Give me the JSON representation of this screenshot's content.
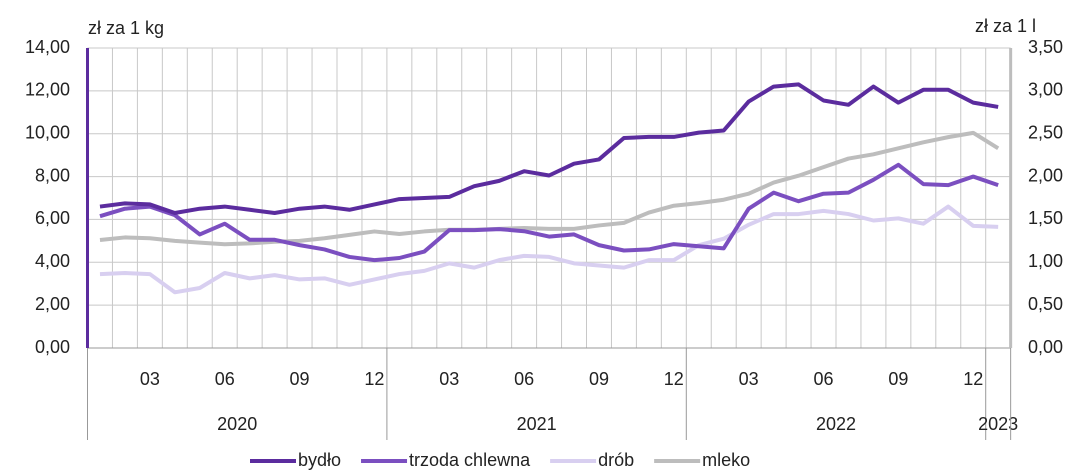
{
  "chart_data": {
    "type": "line",
    "y_label": "zł za 1 kg",
    "y2_label": "zł za 1 l",
    "categories": [
      null,
      null,
      "03",
      null,
      null,
      "06",
      null,
      null,
      "09",
      null,
      null,
      "12",
      null,
      null,
      "03",
      null,
      null,
      "06",
      null,
      null,
      "09",
      null,
      null,
      "12",
      null,
      null,
      "03",
      null,
      null,
      "06",
      null,
      null,
      "09",
      null,
      null,
      "12",
      null
    ],
    "x_groups": [
      "2020",
      "2021",
      "2022",
      "2023"
    ],
    "ylim": [
      0,
      14
    ],
    "yticks": [
      {
        "value": 0,
        "label": "0,00"
      },
      {
        "value": 2,
        "label": "2,00"
      },
      {
        "value": 4,
        "label": "4,00"
      },
      {
        "value": 6,
        "label": "6,00"
      },
      {
        "value": 8,
        "label": "8,00"
      },
      {
        "value": 10,
        "label": "10,00"
      },
      {
        "value": 12,
        "label": "12,00"
      },
      {
        "value": 14,
        "label": "14,00"
      }
    ],
    "y2lim": [
      0,
      3.5
    ],
    "y2ticks": [
      {
        "value": 0,
        "label": "0,00"
      },
      {
        "value": 0.5,
        "label": "0,50"
      },
      {
        "value": 1,
        "label": "1,00"
      },
      {
        "value": 1.5,
        "label": "1,50"
      },
      {
        "value": 2,
        "label": "2,00"
      },
      {
        "value": 2.5,
        "label": "2,50"
      },
      {
        "value": 3,
        "label": "3,00"
      },
      {
        "value": 3.5,
        "label": "3,50"
      }
    ],
    "grid": true,
    "legend": "bottom",
    "series": [
      {
        "name": "bydło",
        "color": "#5b2c9e",
        "values": [
          6.6,
          6.75,
          6.7,
          6.3,
          6.5,
          6.6,
          6.45,
          6.3,
          6.5,
          6.6,
          6.45,
          6.7,
          6.95,
          7.0,
          7.05,
          7.55,
          7.8,
          8.25,
          8.05,
          8.6,
          8.8,
          9.8,
          9.85,
          9.85,
          10.05,
          10.15,
          11.5,
          12.2,
          12.3,
          11.55,
          11.35,
          12.2,
          11.45,
          12.05,
          12.05,
          11.45,
          11.25
        ]
      },
      {
        "name": "trzoda chlewna",
        "color": "#7b4fc0",
        "values": [
          6.15,
          6.5,
          6.6,
          6.2,
          5.3,
          5.8,
          5.05,
          5.05,
          4.8,
          4.6,
          4.25,
          4.1,
          4.2,
          4.5,
          5.5,
          5.5,
          5.55,
          5.45,
          5.2,
          5.3,
          4.8,
          4.55,
          4.6,
          4.85,
          4.75,
          4.65,
          6.5,
          7.25,
          6.85,
          7.2,
          7.25,
          7.85,
          8.55,
          7.65,
          7.6,
          8.0,
          7.6
        ]
      },
      {
        "name": "drób",
        "color": "#d8cff0",
        "values": [
          3.45,
          3.5,
          3.45,
          2.6,
          2.8,
          3.5,
          3.25,
          3.4,
          3.2,
          3.25,
          2.95,
          3.2,
          3.45,
          3.6,
          3.95,
          3.75,
          4.1,
          4.3,
          4.25,
          3.95,
          3.85,
          3.75,
          4.1,
          4.1,
          4.8,
          5.1,
          5.75,
          6.25,
          6.25,
          6.4,
          6.25,
          5.95,
          6.05,
          5.8,
          6.6,
          5.7,
          5.65
        ]
      },
      {
        "name": "mleko",
        "color": "#bdbdbd",
        "axis": "y2",
        "values": [
          1.26,
          1.29,
          1.28,
          1.25,
          1.23,
          1.21,
          1.22,
          1.24,
          1.25,
          1.28,
          1.32,
          1.36,
          1.33,
          1.36,
          1.38,
          1.38,
          1.39,
          1.4,
          1.39,
          1.39,
          1.43,
          1.46,
          1.58,
          1.66,
          1.69,
          1.73,
          1.8,
          1.93,
          2.01,
          2.11,
          2.21,
          2.26,
          2.33,
          2.4,
          2.46,
          2.51,
          2.33
        ]
      }
    ]
  }
}
